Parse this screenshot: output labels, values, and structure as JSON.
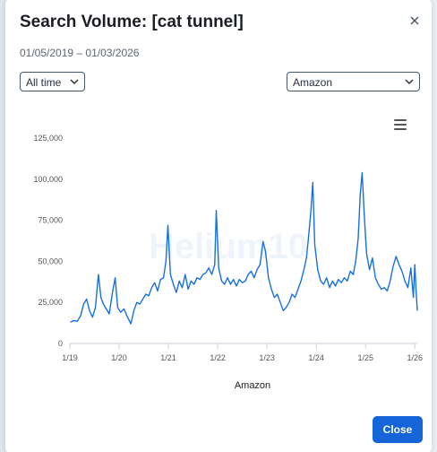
{
  "modal": {
    "title": "Search Volume: [cat tunnel]",
    "date_range": "01/05/2019 – 01/03/2026",
    "close_button": "Close"
  },
  "filters": {
    "time_range": "All time",
    "marketplace": "Amazon"
  },
  "watermark": "Helium10",
  "colors": {
    "line": "#1870e0",
    "primary": "#1565d8"
  },
  "chart_data": {
    "type": "line",
    "xlabel": "Amazon",
    "ylabel": "",
    "ylim": [
      0,
      125000
    ],
    "y_ticks": [
      {
        "value": 0,
        "label": "0"
      },
      {
        "value": 25000,
        "label": "25,000"
      },
      {
        "value": 50000,
        "label": "50,000"
      },
      {
        "value": 75000,
        "label": "75,000"
      },
      {
        "value": 100000,
        "label": "100,000"
      },
      {
        "value": 125000,
        "label": "125,000"
      }
    ],
    "x_range": [
      2019.0,
      2026.05
    ],
    "x_ticks": [
      {
        "value": 2019,
        "label": "1/19"
      },
      {
        "value": 2020,
        "label": "1/20"
      },
      {
        "value": 2021,
        "label": "1/21"
      },
      {
        "value": 2022,
        "label": "1/22"
      },
      {
        "value": 2023,
        "label": "1/23"
      },
      {
        "value": 2024,
        "label": "1/24"
      },
      {
        "value": 2025,
        "label": "1/25"
      },
      {
        "value": 2026,
        "label": "1/26"
      }
    ],
    "series": [
      {
        "points": [
          [
            2019.01,
            13000
          ],
          [
            2019.08,
            14000
          ],
          [
            2019.15,
            13500
          ],
          [
            2019.22,
            17000
          ],
          [
            2019.28,
            24000
          ],
          [
            2019.34,
            27000
          ],
          [
            2019.4,
            20000
          ],
          [
            2019.46,
            16000
          ],
          [
            2019.52,
            22000
          ],
          [
            2019.58,
            42000
          ],
          [
            2019.63,
            28000
          ],
          [
            2019.68,
            24000
          ],
          [
            2019.74,
            21000
          ],
          [
            2019.8,
            18000
          ],
          [
            2019.86,
            30000
          ],
          [
            2019.92,
            40000
          ],
          [
            2019.97,
            22000
          ],
          [
            2020.03,
            19000
          ],
          [
            2020.1,
            21000
          ],
          [
            2020.17,
            16000
          ],
          [
            2020.24,
            12000
          ],
          [
            2020.3,
            20000
          ],
          [
            2020.36,
            25000
          ],
          [
            2020.42,
            24000
          ],
          [
            2020.48,
            27000
          ],
          [
            2020.54,
            30000
          ],
          [
            2020.6,
            29000
          ],
          [
            2020.66,
            34000
          ],
          [
            2020.72,
            37000
          ],
          [
            2020.78,
            32000
          ],
          [
            2020.84,
            39000
          ],
          [
            2020.9,
            40000
          ],
          [
            2020.95,
            50000
          ],
          [
            2020.99,
            72000
          ],
          [
            2021.04,
            42000
          ],
          [
            2021.1,
            36000
          ],
          [
            2021.16,
            31000
          ],
          [
            2021.22,
            38000
          ],
          [
            2021.28,
            34000
          ],
          [
            2021.34,
            42000
          ],
          [
            2021.4,
            33000
          ],
          [
            2021.46,
            38000
          ],
          [
            2021.52,
            36000
          ],
          [
            2021.58,
            40000
          ],
          [
            2021.64,
            39000
          ],
          [
            2021.7,
            42000
          ],
          [
            2021.76,
            43000
          ],
          [
            2021.82,
            46000
          ],
          [
            2021.88,
            42000
          ],
          [
            2021.94,
            48000
          ],
          [
            2021.97,
            81000
          ],
          [
            2022.02,
            46000
          ],
          [
            2022.08,
            38000
          ],
          [
            2022.14,
            36000
          ],
          [
            2022.2,
            40000
          ],
          [
            2022.26,
            36000
          ],
          [
            2022.32,
            39000
          ],
          [
            2022.38,
            35000
          ],
          [
            2022.44,
            39000
          ],
          [
            2022.5,
            37000
          ],
          [
            2022.56,
            38000
          ],
          [
            2022.62,
            42000
          ],
          [
            2022.68,
            44000
          ],
          [
            2022.74,
            40000
          ],
          [
            2022.8,
            45000
          ],
          [
            2022.86,
            48000
          ],
          [
            2022.92,
            62000
          ],
          [
            2022.97,
            56000
          ],
          [
            2023.03,
            40000
          ],
          [
            2023.09,
            33000
          ],
          [
            2023.15,
            28000
          ],
          [
            2023.21,
            30000
          ],
          [
            2023.27,
            25000
          ],
          [
            2023.33,
            20000
          ],
          [
            2023.39,
            22000
          ],
          [
            2023.45,
            25000
          ],
          [
            2023.51,
            30000
          ],
          [
            2023.57,
            28000
          ],
          [
            2023.63,
            33000
          ],
          [
            2023.69,
            38000
          ],
          [
            2023.75,
            45000
          ],
          [
            2023.8,
            52000
          ],
          [
            2023.84,
            64000
          ],
          [
            2023.89,
            80000
          ],
          [
            2023.93,
            98000
          ],
          [
            2023.97,
            60000
          ],
          [
            2024.03,
            45000
          ],
          [
            2024.09,
            38000
          ],
          [
            2024.15,
            36000
          ],
          [
            2024.21,
            40000
          ],
          [
            2024.27,
            34000
          ],
          [
            2024.33,
            38000
          ],
          [
            2024.39,
            35000
          ],
          [
            2024.45,
            39000
          ],
          [
            2024.51,
            37000
          ],
          [
            2024.57,
            40000
          ],
          [
            2024.63,
            38000
          ],
          [
            2024.69,
            44000
          ],
          [
            2024.75,
            42000
          ],
          [
            2024.8,
            50000
          ],
          [
            2024.85,
            64000
          ],
          [
            2024.89,
            90000
          ],
          [
            2024.93,
            104000
          ],
          [
            2024.97,
            80000
          ],
          [
            2025.02,
            55000
          ],
          [
            2025.08,
            45000
          ],
          [
            2025.14,
            52000
          ],
          [
            2025.2,
            40000
          ],
          [
            2025.26,
            36000
          ],
          [
            2025.32,
            33000
          ],
          [
            2025.38,
            34000
          ],
          [
            2025.44,
            32000
          ],
          [
            2025.5,
            38000
          ],
          [
            2025.56,
            47000
          ],
          [
            2025.62,
            53000
          ],
          [
            2025.68,
            48000
          ],
          [
            2025.74,
            44000
          ],
          [
            2025.8,
            38000
          ],
          [
            2025.86,
            34000
          ],
          [
            2025.92,
            46000
          ],
          [
            2025.97,
            28000
          ],
          [
            2026.0,
            48000
          ],
          [
            2026.03,
            30000
          ],
          [
            2026.05,
            20000
          ]
        ]
      }
    ]
  }
}
